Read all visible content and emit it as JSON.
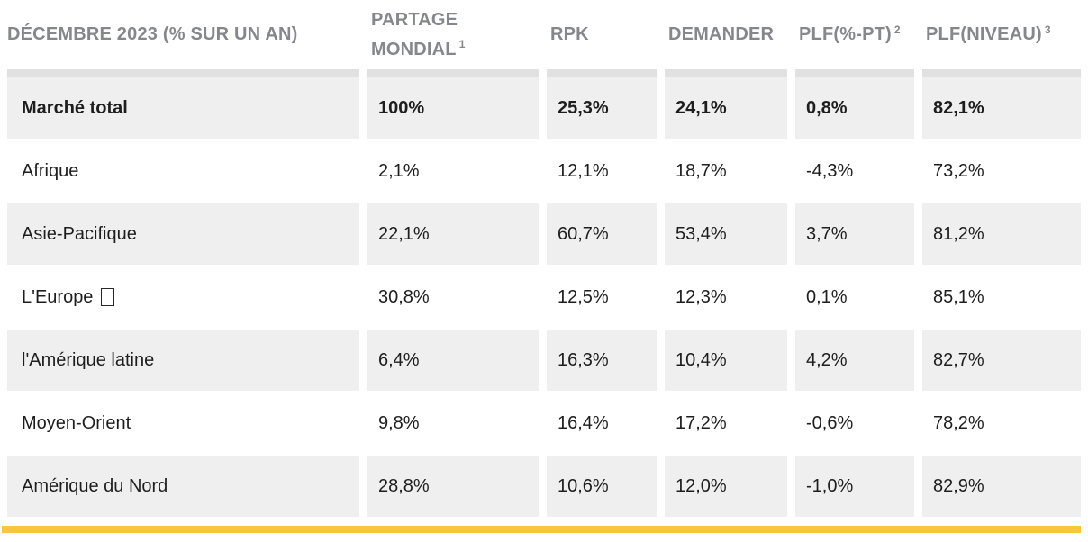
{
  "colors": {
    "header_text": "#85878a",
    "body_text": "#1e1e1e",
    "row_gray": "#f0efef",
    "divider": "#e1e1e1",
    "accent_yellow": "#f6c73d"
  },
  "chart_data": {
    "type": "table",
    "title": "DÉCEMBRE 2023 (% SUR UN AN)",
    "columns": [
      {
        "label": "DÉCEMBRE 2023 (% SUR UN AN)",
        "sup": ""
      },
      {
        "label": "PARTAGE MONDIAL",
        "sup": "1"
      },
      {
        "label": "RPK",
        "sup": ""
      },
      {
        "label": "DEMANDER",
        "sup": ""
      },
      {
        "label": "PLF(%-PT)",
        "sup": "2"
      },
      {
        "label": "PLF(NIVEAU)",
        "sup": "3"
      }
    ],
    "rows": [
      {
        "label": "Marché total",
        "bold": true,
        "missing_glyph": false,
        "values": [
          "100%",
          "25,3%",
          "24,1%",
          "0,8%",
          "82,1%"
        ]
      },
      {
        "label": "Afrique",
        "bold": false,
        "missing_glyph": false,
        "values": [
          "2,1%",
          "12,1%",
          "18,7%",
          "-4,3%",
          "73,2%"
        ]
      },
      {
        "label": "Asie-Pacifique",
        "bold": false,
        "missing_glyph": false,
        "values": [
          "22,1%",
          "60,7%",
          "53,4%",
          "3,7%",
          "81,2%"
        ]
      },
      {
        "label": "L'Europe",
        "bold": false,
        "missing_glyph": true,
        "values": [
          "30,8%",
          "12,5%",
          "12,3%",
          "0,1%",
          "85,1%"
        ]
      },
      {
        "label": "l'Amérique latine",
        "bold": false,
        "missing_glyph": false,
        "values": [
          "6,4%",
          "16,3%",
          "10,4%",
          "4,2%",
          "82,7%"
        ]
      },
      {
        "label": "Moyen-Orient",
        "bold": false,
        "missing_glyph": false,
        "values": [
          "9,8%",
          "16,4%",
          "17,2%",
          "-0,6%",
          "78,2%"
        ]
      },
      {
        "label": "Amérique du Nord",
        "bold": false,
        "missing_glyph": false,
        "values": [
          "28,8%",
          "10,6%",
          "12,0%",
          "-1,0%",
          "82,9%"
        ]
      }
    ]
  }
}
